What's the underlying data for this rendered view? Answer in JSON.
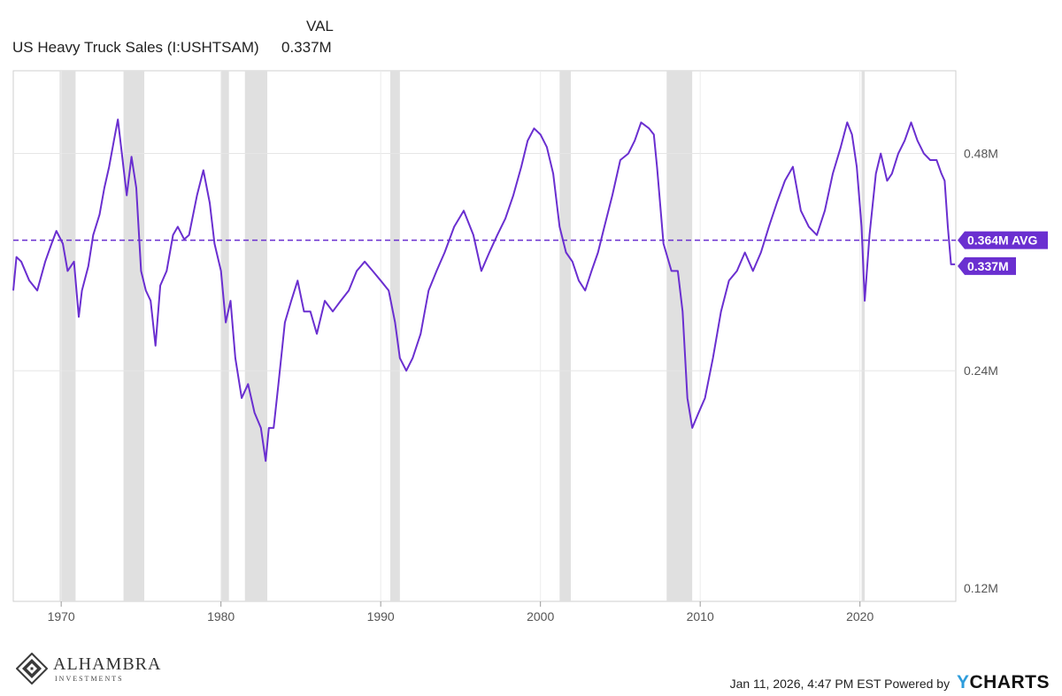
{
  "legend": {
    "column_header": "VAL",
    "series_name": "US Heavy Truck Sales (I:USHTSAM)",
    "series_value": "0.337M"
  },
  "chart_data": {
    "type": "line",
    "series": [
      {
        "name": "US Heavy Truck Sales (I:USHTSAM)",
        "color": "#6a2fd0",
        "points": [
          [
            1967.0,
            0.31
          ],
          [
            1967.2,
            0.345
          ],
          [
            1967.5,
            0.34
          ],
          [
            1968.0,
            0.32
          ],
          [
            1968.5,
            0.31
          ],
          [
            1969.0,
            0.34
          ],
          [
            1969.4,
            0.36
          ],
          [
            1969.7,
            0.375
          ],
          [
            1970.1,
            0.36
          ],
          [
            1970.4,
            0.33
          ],
          [
            1970.8,
            0.34
          ],
          [
            1971.1,
            0.285
          ],
          [
            1971.3,
            0.31
          ],
          [
            1971.7,
            0.335
          ],
          [
            1972.0,
            0.37
          ],
          [
            1972.4,
            0.395
          ],
          [
            1972.7,
            0.43
          ],
          [
            1973.0,
            0.46
          ],
          [
            1973.3,
            0.5
          ],
          [
            1973.55,
            0.535
          ],
          [
            1973.8,
            0.48
          ],
          [
            1974.1,
            0.42
          ],
          [
            1974.4,
            0.475
          ],
          [
            1974.7,
            0.43
          ],
          [
            1975.0,
            0.33
          ],
          [
            1975.3,
            0.31
          ],
          [
            1975.6,
            0.3
          ],
          [
            1975.9,
            0.26
          ],
          [
            1976.2,
            0.315
          ],
          [
            1976.6,
            0.33
          ],
          [
            1977.0,
            0.37
          ],
          [
            1977.3,
            0.38
          ],
          [
            1977.7,
            0.365
          ],
          [
            1978.0,
            0.37
          ],
          [
            1978.5,
            0.42
          ],
          [
            1978.9,
            0.455
          ],
          [
            1979.3,
            0.41
          ],
          [
            1979.6,
            0.36
          ],
          [
            1980.0,
            0.33
          ],
          [
            1980.3,
            0.28
          ],
          [
            1980.6,
            0.3
          ],
          [
            1980.9,
            0.25
          ],
          [
            1981.3,
            0.22
          ],
          [
            1981.7,
            0.23
          ],
          [
            1982.1,
            0.21
          ],
          [
            1982.5,
            0.2
          ],
          [
            1982.8,
            0.18
          ],
          [
            1983.0,
            0.2
          ],
          [
            1983.3,
            0.2
          ],
          [
            1983.6,
            0.23
          ],
          [
            1984.0,
            0.28
          ],
          [
            1984.4,
            0.3
          ],
          [
            1984.8,
            0.32
          ],
          [
            1985.2,
            0.29
          ],
          [
            1985.6,
            0.29
          ],
          [
            1986.0,
            0.27
          ],
          [
            1986.5,
            0.3
          ],
          [
            1987.0,
            0.29
          ],
          [
            1987.5,
            0.3
          ],
          [
            1988.0,
            0.31
          ],
          [
            1988.5,
            0.33
          ],
          [
            1989.0,
            0.34
          ],
          [
            1989.5,
            0.33
          ],
          [
            1990.0,
            0.32
          ],
          [
            1990.5,
            0.31
          ],
          [
            1990.9,
            0.28
          ],
          [
            1991.2,
            0.25
          ],
          [
            1991.6,
            0.24
          ],
          [
            1992.0,
            0.25
          ],
          [
            1992.5,
            0.27
          ],
          [
            1993.0,
            0.31
          ],
          [
            1993.5,
            0.33
          ],
          [
            1994.0,
            0.35
          ],
          [
            1994.6,
            0.38
          ],
          [
            1995.2,
            0.4
          ],
          [
            1995.8,
            0.37
          ],
          [
            1996.3,
            0.33
          ],
          [
            1996.8,
            0.35
          ],
          [
            1997.3,
            0.37
          ],
          [
            1997.8,
            0.39
          ],
          [
            1998.3,
            0.42
          ],
          [
            1998.8,
            0.46
          ],
          [
            1999.2,
            0.5
          ],
          [
            1999.6,
            0.52
          ],
          [
            2000.0,
            0.51
          ],
          [
            2000.4,
            0.49
          ],
          [
            2000.8,
            0.45
          ],
          [
            2001.2,
            0.38
          ],
          [
            2001.6,
            0.35
          ],
          [
            2002.0,
            0.34
          ],
          [
            2002.4,
            0.32
          ],
          [
            2002.8,
            0.31
          ],
          [
            2003.2,
            0.33
          ],
          [
            2003.6,
            0.35
          ],
          [
            2004.0,
            0.38
          ],
          [
            2004.5,
            0.42
          ],
          [
            2005.0,
            0.47
          ],
          [
            2005.5,
            0.48
          ],
          [
            2005.9,
            0.5
          ],
          [
            2006.3,
            0.53
          ],
          [
            2006.8,
            0.52
          ],
          [
            2007.1,
            0.51
          ],
          [
            2007.3,
            0.46
          ],
          [
            2007.7,
            0.36
          ],
          [
            2008.2,
            0.33
          ],
          [
            2008.6,
            0.33
          ],
          [
            2008.9,
            0.29
          ],
          [
            2009.2,
            0.22
          ],
          [
            2009.5,
            0.2
          ],
          [
            2009.9,
            0.21
          ],
          [
            2010.3,
            0.22
          ],
          [
            2010.8,
            0.25
          ],
          [
            2011.3,
            0.29
          ],
          [
            2011.8,
            0.32
          ],
          [
            2012.3,
            0.33
          ],
          [
            2012.8,
            0.35
          ],
          [
            2013.3,
            0.33
          ],
          [
            2013.8,
            0.35
          ],
          [
            2014.3,
            0.38
          ],
          [
            2014.8,
            0.41
          ],
          [
            2015.3,
            0.44
          ],
          [
            2015.8,
            0.46
          ],
          [
            2016.3,
            0.4
          ],
          [
            2016.8,
            0.38
          ],
          [
            2017.3,
            0.37
          ],
          [
            2017.8,
            0.4
          ],
          [
            2018.3,
            0.45
          ],
          [
            2018.8,
            0.49
          ],
          [
            2019.2,
            0.53
          ],
          [
            2019.5,
            0.51
          ],
          [
            2019.8,
            0.46
          ],
          [
            2020.1,
            0.38
          ],
          [
            2020.3,
            0.3
          ],
          [
            2020.6,
            0.37
          ],
          [
            2021.0,
            0.45
          ],
          [
            2021.3,
            0.48
          ],
          [
            2021.7,
            0.44
          ],
          [
            2022.0,
            0.45
          ],
          [
            2022.4,
            0.48
          ],
          [
            2022.8,
            0.5
          ],
          [
            2023.2,
            0.53
          ],
          [
            2023.6,
            0.5
          ],
          [
            2024.0,
            0.48
          ],
          [
            2024.4,
            0.47
          ],
          [
            2024.8,
            0.47
          ],
          [
            2025.1,
            0.45
          ],
          [
            2025.3,
            0.44
          ],
          [
            2025.5,
            0.38
          ],
          [
            2025.7,
            0.337
          ],
          [
            2025.95,
            0.337
          ]
        ]
      }
    ],
    "recessions": [
      [
        1969.9,
        1970.9
      ],
      [
        1973.9,
        1975.2
      ],
      [
        1980.0,
        1980.5
      ],
      [
        1981.5,
        1982.9
      ],
      [
        1990.6,
        1991.2
      ],
      [
        2001.2,
        2001.9
      ],
      [
        2007.9,
        2009.5
      ],
      [
        2020.1,
        2020.3
      ]
    ],
    "average": {
      "value": 0.364,
      "label": "0.364M AVG"
    },
    "last_value_label": "0.337M",
    "x_ticks": [
      "1970",
      "1980",
      "1990",
      "2000",
      "2010",
      "2020"
    ],
    "y_ticks": [
      {
        "value": 0.12,
        "label": "0.12M"
      },
      {
        "value": 0.24,
        "label": "0.24M"
      },
      {
        "value": 0.48,
        "label": "0.48M"
      }
    ],
    "xlim": [
      1967.0,
      2026.0
    ],
    "y_scale": "log",
    "grid": true,
    "line_color": "#6a2fd0",
    "recession_color": "#e0e0e0"
  },
  "footer": {
    "logo_name": "ALHAMBRA",
    "logo_sub": "INVESTMENTS",
    "timestamp": "Jan 11, 2026, 4:47 PM EST Powered by",
    "brand_y": "Y",
    "brand_rest": "CHARTS"
  }
}
